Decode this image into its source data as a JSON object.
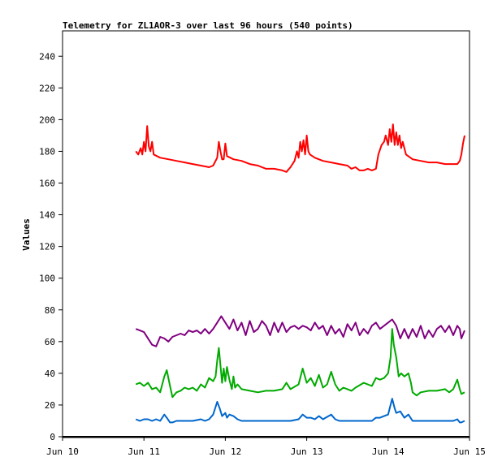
{
  "chart_data": {
    "type": "line",
    "title": "Telemetry for ZL1AOR-3 over last 96 hours (540 points)",
    "xlabel": "",
    "ylabel": "Values",
    "ylim": [
      0,
      256
    ],
    "xlim": [
      0,
      5
    ],
    "x_ticks": [
      {
        "label": "Jun 10",
        "value": 0
      },
      {
        "label": "Jun 11",
        "value": 1
      },
      {
        "label": "Jun 12",
        "value": 2
      },
      {
        "label": "Jun 13",
        "value": 3
      },
      {
        "label": "Jun 14",
        "value": 4
      },
      {
        "label": "Jun 15",
        "value": 5
      }
    ],
    "y_ticks": [
      0,
      20,
      40,
      60,
      80,
      100,
      120,
      140,
      160,
      180,
      200,
      220,
      240
    ],
    "grid": false,
    "legend": "none",
    "series": [
      {
        "color": "#ff0000",
        "points": [
          [
            0.9,
            180
          ],
          [
            0.93,
            178
          ],
          [
            0.96,
            182
          ],
          [
            0.98,
            178
          ],
          [
            1.0,
            186
          ],
          [
            1.02,
            180
          ],
          [
            1.04,
            196
          ],
          [
            1.06,
            183
          ],
          [
            1.08,
            180
          ],
          [
            1.1,
            186
          ],
          [
            1.12,
            178
          ],
          [
            1.2,
            176
          ],
          [
            1.3,
            175
          ],
          [
            1.4,
            174
          ],
          [
            1.5,
            173
          ],
          [
            1.6,
            172
          ],
          [
            1.7,
            171
          ],
          [
            1.8,
            170
          ],
          [
            1.85,
            171
          ],
          [
            1.9,
            176
          ],
          [
            1.92,
            186
          ],
          [
            1.94,
            180
          ],
          [
            1.96,
            175
          ],
          [
            1.98,
            175
          ],
          [
            2.0,
            185
          ],
          [
            2.02,
            177
          ],
          [
            2.1,
            175
          ],
          [
            2.2,
            174
          ],
          [
            2.3,
            172
          ],
          [
            2.4,
            171
          ],
          [
            2.5,
            169
          ],
          [
            2.6,
            169
          ],
          [
            2.7,
            168
          ],
          [
            2.75,
            167
          ],
          [
            2.8,
            170
          ],
          [
            2.85,
            174
          ],
          [
            2.88,
            180
          ],
          [
            2.9,
            176
          ],
          [
            2.92,
            186
          ],
          [
            2.94,
            180
          ],
          [
            2.96,
            187
          ],
          [
            2.98,
            178
          ],
          [
            3.0,
            190
          ],
          [
            3.02,
            180
          ],
          [
            3.04,
            178
          ],
          [
            3.1,
            176
          ],
          [
            3.2,
            174
          ],
          [
            3.3,
            173
          ],
          [
            3.4,
            172
          ],
          [
            3.5,
            171
          ],
          [
            3.55,
            169
          ],
          [
            3.6,
            170
          ],
          [
            3.65,
            168
          ],
          [
            3.7,
            168
          ],
          [
            3.75,
            169
          ],
          [
            3.8,
            168
          ],
          [
            3.85,
            169
          ],
          [
            3.88,
            178
          ],
          [
            3.92,
            184
          ],
          [
            3.95,
            186
          ],
          [
            3.97,
            190
          ],
          [
            4.0,
            184
          ],
          [
            4.02,
            194
          ],
          [
            4.04,
            186
          ],
          [
            4.06,
            197
          ],
          [
            4.08,
            184
          ],
          [
            4.1,
            192
          ],
          [
            4.12,
            184
          ],
          [
            4.14,
            190
          ],
          [
            4.16,
            182
          ],
          [
            4.18,
            186
          ],
          [
            4.22,
            178
          ],
          [
            4.3,
            175
          ],
          [
            4.4,
            174
          ],
          [
            4.5,
            173
          ],
          [
            4.6,
            173
          ],
          [
            4.7,
            172
          ],
          [
            4.8,
            172
          ],
          [
            4.85,
            172
          ],
          [
            4.88,
            174
          ],
          [
            4.9,
            178
          ],
          [
            4.92,
            185
          ],
          [
            4.94,
            190
          ]
        ]
      },
      {
        "color": "#800080",
        "points": [
          [
            0.9,
            68
          ],
          [
            0.95,
            67
          ],
          [
            1.0,
            66
          ],
          [
            1.05,
            62
          ],
          [
            1.1,
            58
          ],
          [
            1.15,
            57
          ],
          [
            1.2,
            63
          ],
          [
            1.25,
            62
          ],
          [
            1.3,
            60
          ],
          [
            1.35,
            63
          ],
          [
            1.4,
            64
          ],
          [
            1.45,
            65
          ],
          [
            1.5,
            64
          ],
          [
            1.55,
            67
          ],
          [
            1.6,
            66
          ],
          [
            1.65,
            67
          ],
          [
            1.7,
            65
          ],
          [
            1.75,
            68
          ],
          [
            1.8,
            65
          ],
          [
            1.85,
            68
          ],
          [
            1.9,
            72
          ],
          [
            1.95,
            76
          ],
          [
            2.0,
            72
          ],
          [
            2.05,
            68
          ],
          [
            2.1,
            74
          ],
          [
            2.15,
            67
          ],
          [
            2.2,
            72
          ],
          [
            2.25,
            64
          ],
          [
            2.3,
            73
          ],
          [
            2.35,
            66
          ],
          [
            2.4,
            68
          ],
          [
            2.45,
            73
          ],
          [
            2.5,
            70
          ],
          [
            2.55,
            64
          ],
          [
            2.6,
            72
          ],
          [
            2.65,
            66
          ],
          [
            2.7,
            72
          ],
          [
            2.75,
            66
          ],
          [
            2.8,
            69
          ],
          [
            2.85,
            70
          ],
          [
            2.9,
            68
          ],
          [
            2.95,
            70
          ],
          [
            3.0,
            69
          ],
          [
            3.05,
            67
          ],
          [
            3.1,
            72
          ],
          [
            3.15,
            68
          ],
          [
            3.2,
            70
          ],
          [
            3.25,
            64
          ],
          [
            3.3,
            70
          ],
          [
            3.35,
            65
          ],
          [
            3.4,
            68
          ],
          [
            3.45,
            63
          ],
          [
            3.5,
            71
          ],
          [
            3.55,
            67
          ],
          [
            3.6,
            72
          ],
          [
            3.65,
            64
          ],
          [
            3.7,
            68
          ],
          [
            3.75,
            65
          ],
          [
            3.8,
            70
          ],
          [
            3.85,
            72
          ],
          [
            3.9,
            68
          ],
          [
            3.95,
            70
          ],
          [
            4.0,
            72
          ],
          [
            4.05,
            74
          ],
          [
            4.1,
            70
          ],
          [
            4.15,
            62
          ],
          [
            4.2,
            68
          ],
          [
            4.25,
            62
          ],
          [
            4.3,
            68
          ],
          [
            4.35,
            63
          ],
          [
            4.4,
            70
          ],
          [
            4.45,
            62
          ],
          [
            4.5,
            67
          ],
          [
            4.55,
            63
          ],
          [
            4.6,
            68
          ],
          [
            4.65,
            70
          ],
          [
            4.7,
            66
          ],
          [
            4.75,
            70
          ],
          [
            4.8,
            64
          ],
          [
            4.85,
            70
          ],
          [
            4.88,
            68
          ],
          [
            4.9,
            62
          ],
          [
            4.94,
            67
          ]
        ]
      },
      {
        "color": "#00aa00",
        "points": [
          [
            0.9,
            33
          ],
          [
            0.95,
            34
          ],
          [
            1.0,
            32
          ],
          [
            1.05,
            34
          ],
          [
            1.1,
            30
          ],
          [
            1.15,
            31
          ],
          [
            1.2,
            28
          ],
          [
            1.25,
            38
          ],
          [
            1.28,
            42
          ],
          [
            1.32,
            32
          ],
          [
            1.35,
            25
          ],
          [
            1.4,
            28
          ],
          [
            1.45,
            29
          ],
          [
            1.5,
            31
          ],
          [
            1.55,
            30
          ],
          [
            1.6,
            31
          ],
          [
            1.65,
            29
          ],
          [
            1.7,
            33
          ],
          [
            1.75,
            31
          ],
          [
            1.8,
            37
          ],
          [
            1.85,
            35
          ],
          [
            1.88,
            38
          ],
          [
            1.9,
            48
          ],
          [
            1.92,
            56
          ],
          [
            1.94,
            45
          ],
          [
            1.96,
            34
          ],
          [
            1.98,
            43
          ],
          [
            2.0,
            35
          ],
          [
            2.02,
            44
          ],
          [
            2.05,
            36
          ],
          [
            2.08,
            30
          ],
          [
            2.1,
            38
          ],
          [
            2.12,
            31
          ],
          [
            2.15,
            33
          ],
          [
            2.2,
            30
          ],
          [
            2.3,
            29
          ],
          [
            2.4,
            28
          ],
          [
            2.5,
            29
          ],
          [
            2.6,
            29
          ],
          [
            2.7,
            30
          ],
          [
            2.75,
            34
          ],
          [
            2.8,
            30
          ],
          [
            2.9,
            33
          ],
          [
            2.95,
            43
          ],
          [
            3.0,
            34
          ],
          [
            3.05,
            37
          ],
          [
            3.1,
            32
          ],
          [
            3.15,
            39
          ],
          [
            3.2,
            31
          ],
          [
            3.25,
            33
          ],
          [
            3.3,
            41
          ],
          [
            3.35,
            33
          ],
          [
            3.4,
            29
          ],
          [
            3.45,
            31
          ],
          [
            3.5,
            30
          ],
          [
            3.55,
            29
          ],
          [
            3.6,
            31
          ],
          [
            3.7,
            34
          ],
          [
            3.8,
            32
          ],
          [
            3.85,
            37
          ],
          [
            3.9,
            36
          ],
          [
            3.95,
            37
          ],
          [
            4.0,
            40
          ],
          [
            4.03,
            50
          ],
          [
            4.05,
            68
          ],
          [
            4.07,
            58
          ],
          [
            4.1,
            50
          ],
          [
            4.13,
            38
          ],
          [
            4.16,
            40
          ],
          [
            4.2,
            38
          ],
          [
            4.25,
            40
          ],
          [
            4.28,
            34
          ],
          [
            4.3,
            28
          ],
          [
            4.35,
            26
          ],
          [
            4.4,
            28
          ],
          [
            4.5,
            29
          ],
          [
            4.6,
            29
          ],
          [
            4.7,
            30
          ],
          [
            4.75,
            28
          ],
          [
            4.8,
            30
          ],
          [
            4.85,
            36
          ],
          [
            4.88,
            30
          ],
          [
            4.9,
            27
          ],
          [
            4.94,
            28
          ]
        ]
      },
      {
        "color": "#0066cc",
        "points": [
          [
            0.9,
            11
          ],
          [
            0.95,
            10
          ],
          [
            1.0,
            11
          ],
          [
            1.05,
            11
          ],
          [
            1.1,
            10
          ],
          [
            1.15,
            11
          ],
          [
            1.2,
            10
          ],
          [
            1.25,
            14
          ],
          [
            1.28,
            12
          ],
          [
            1.32,
            9
          ],
          [
            1.35,
            9
          ],
          [
            1.4,
            10
          ],
          [
            1.5,
            10
          ],
          [
            1.6,
            10
          ],
          [
            1.7,
            11
          ],
          [
            1.75,
            10
          ],
          [
            1.8,
            11
          ],
          [
            1.85,
            14
          ],
          [
            1.9,
            22
          ],
          [
            1.93,
            18
          ],
          [
            1.96,
            13
          ],
          [
            2.0,
            15
          ],
          [
            2.02,
            12
          ],
          [
            2.05,
            14
          ],
          [
            2.1,
            13
          ],
          [
            2.15,
            11
          ],
          [
            2.2,
            10
          ],
          [
            2.3,
            10
          ],
          [
            2.4,
            10
          ],
          [
            2.5,
            10
          ],
          [
            2.6,
            10
          ],
          [
            2.7,
            10
          ],
          [
            2.8,
            10
          ],
          [
            2.9,
            11
          ],
          [
            2.95,
            14
          ],
          [
            3.0,
            12
          ],
          [
            3.05,
            12
          ],
          [
            3.1,
            11
          ],
          [
            3.15,
            13
          ],
          [
            3.2,
            11
          ],
          [
            3.3,
            14
          ],
          [
            3.35,
            11
          ],
          [
            3.4,
            10
          ],
          [
            3.5,
            10
          ],
          [
            3.6,
            10
          ],
          [
            3.7,
            10
          ],
          [
            3.8,
            10
          ],
          [
            3.85,
            12
          ],
          [
            3.9,
            12
          ],
          [
            3.95,
            13
          ],
          [
            4.0,
            14
          ],
          [
            4.03,
            20
          ],
          [
            4.05,
            24
          ],
          [
            4.08,
            18
          ],
          [
            4.1,
            15
          ],
          [
            4.15,
            16
          ],
          [
            4.2,
            12
          ],
          [
            4.25,
            14
          ],
          [
            4.3,
            10
          ],
          [
            4.4,
            10
          ],
          [
            4.5,
            10
          ],
          [
            4.6,
            10
          ],
          [
            4.7,
            10
          ],
          [
            4.8,
            10
          ],
          [
            4.85,
            11
          ],
          [
            4.88,
            9
          ],
          [
            4.9,
            9
          ],
          [
            4.94,
            10
          ]
        ]
      }
    ]
  }
}
